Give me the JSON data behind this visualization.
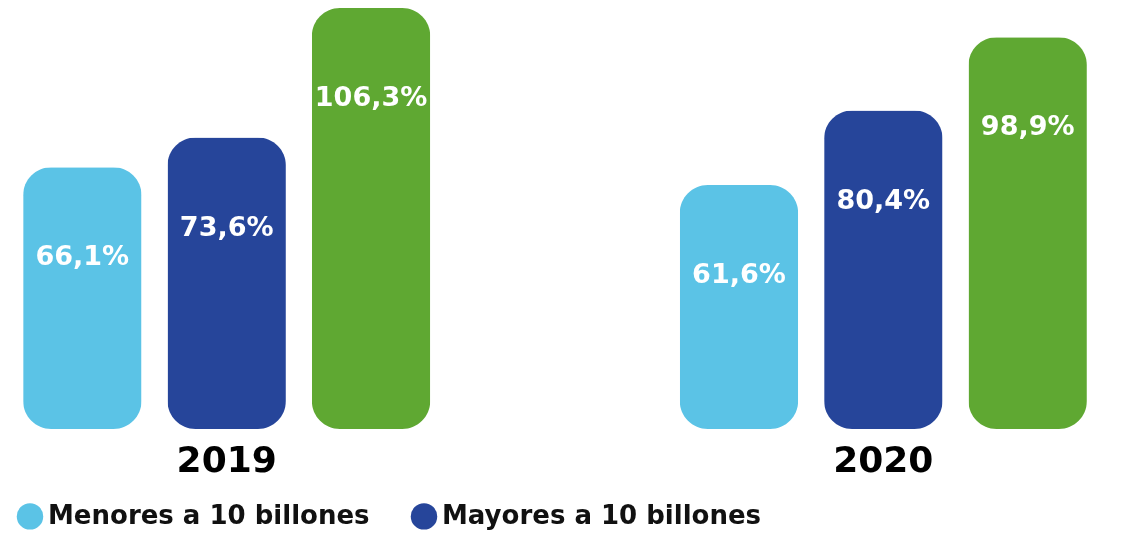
{
  "chart_data": {
    "type": "bar",
    "categories": [
      "2019",
      "2020"
    ],
    "series": [
      {
        "name": "Menores a 10 billones",
        "color": "#5bc3e6",
        "values": [
          66.1,
          61.6
        ],
        "value_labels": [
          "66,1%",
          "61,6%"
        ]
      },
      {
        "name": "Mayores a 10 billones",
        "color": "#26459a",
        "values": [
          73.6,
          80.4
        ],
        "value_labels": [
          "73,6%",
          "80,4%"
        ]
      },
      {
        "color": "#5fa832",
        "values": [
          106.3,
          98.9
        ],
        "value_labels": [
          "106,3%",
          "98,9%"
        ]
      }
    ],
    "legend": "bottom",
    "grid": false
  }
}
